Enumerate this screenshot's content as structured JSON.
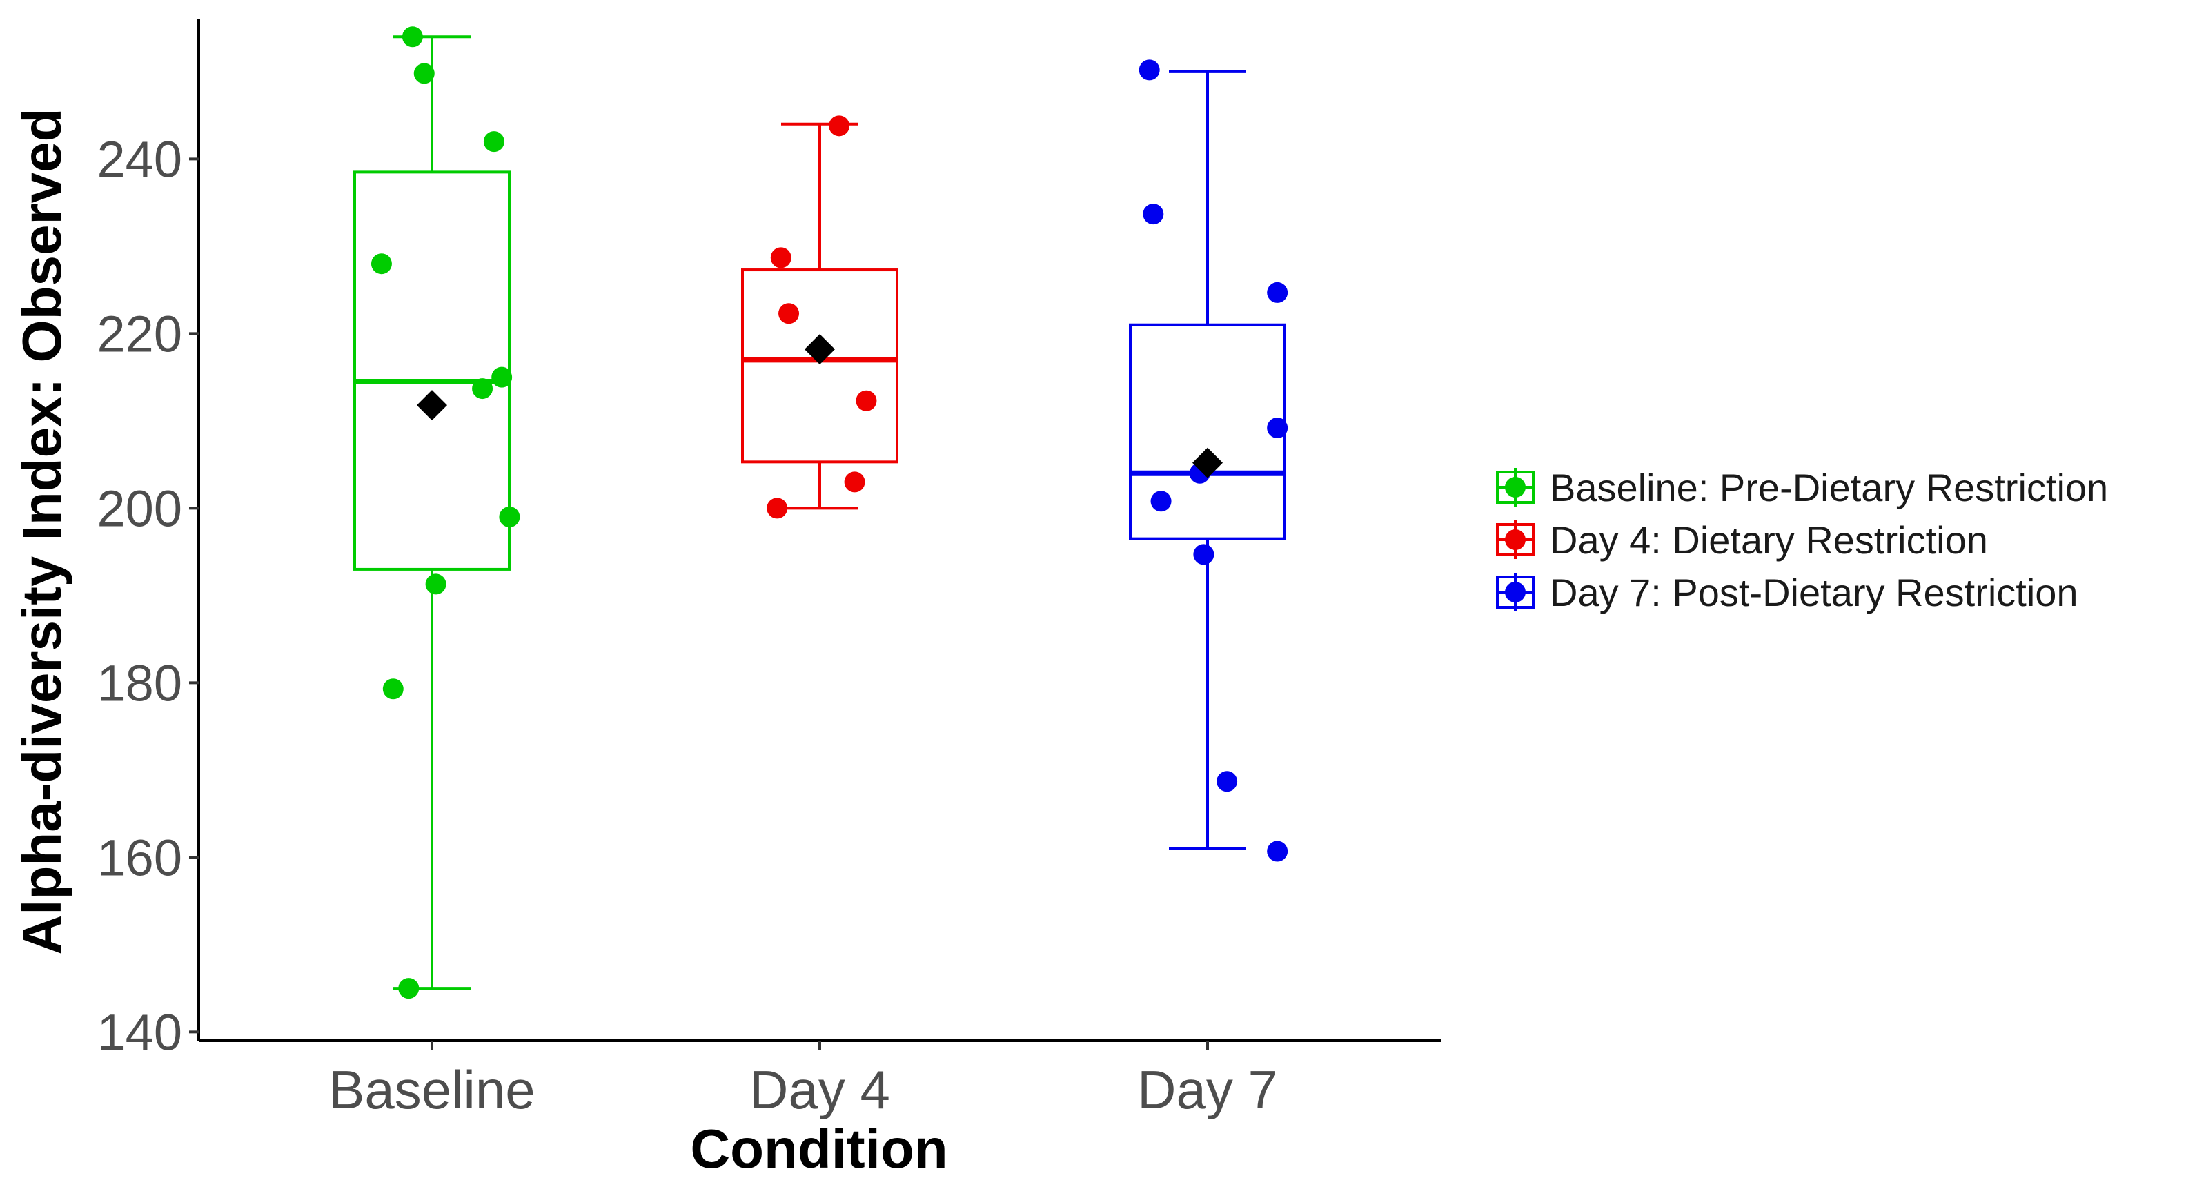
{
  "chart_data": {
    "type": "boxplot",
    "title": "",
    "xlabel": "Condition",
    "ylabel": "Alpha-diversity Index: Observed",
    "ylim": [
      139,
      256
    ],
    "yticks": [
      140,
      160,
      180,
      200,
      220,
      240
    ],
    "categories": [
      "Baseline",
      "Day 4",
      "Day 7"
    ],
    "legend_position": "right",
    "legend": [
      "Baseline: Pre-Dietary Restriction",
      "Day 4: Dietary Restriction",
      "Day 7: Post-Dietary Restriction"
    ],
    "colors": [
      "#00cc00",
      "#ee0000",
      "#0000ee"
    ],
    "mean_marker_color": "#000000",
    "groups": [
      {
        "name": "Baseline",
        "whisker_low": 145,
        "q1": 193,
        "median": 214.5,
        "q3": 238.5,
        "whisker_high": 254,
        "mean": 211.8,
        "points": [
          {
            "x_offset": -0.05,
            "y": 254
          },
          {
            "x_offset": -0.02,
            "y": 249.8
          },
          {
            "x_offset": 0.16,
            "y": 242
          },
          {
            "x_offset": -0.13,
            "y": 228
          },
          {
            "x_offset": 0.18,
            "y": 215
          },
          {
            "x_offset": 0.13,
            "y": 213.7
          },
          {
            "x_offset": 0.2,
            "y": 199
          },
          {
            "x_offset": 0.01,
            "y": 191.3
          },
          {
            "x_offset": -0.1,
            "y": 179.3
          },
          {
            "x_offset": -0.06,
            "y": 145
          }
        ]
      },
      {
        "name": "Day 4",
        "whisker_low": 200,
        "q1": 205.3,
        "median": 217,
        "q3": 227.3,
        "whisker_high": 244,
        "mean": 218.2,
        "points": [
          {
            "x_offset": 0.05,
            "y": 243.8
          },
          {
            "x_offset": -0.1,
            "y": 228.7
          },
          {
            "x_offset": -0.08,
            "y": 222.3
          },
          {
            "x_offset": 0.12,
            "y": 212.3
          },
          {
            "x_offset": 0.09,
            "y": 203
          },
          {
            "x_offset": -0.11,
            "y": 200
          }
        ]
      },
      {
        "name": "Day 7",
        "whisker_low": 161,
        "q1": 196.5,
        "median": 204,
        "q3": 221,
        "whisker_high": 250,
        "mean": 205.2,
        "points": [
          {
            "x_offset": -0.15,
            "y": 250.2
          },
          {
            "x_offset": -0.14,
            "y": 233.7
          },
          {
            "x_offset": 0.18,
            "y": 224.7
          },
          {
            "x_offset": 0.18,
            "y": 209.2
          },
          {
            "x_offset": -0.02,
            "y": 204
          },
          {
            "x_offset": -0.12,
            "y": 200.8
          },
          {
            "x_offset": -0.01,
            "y": 194.7
          },
          {
            "x_offset": 0.05,
            "y": 168.7
          },
          {
            "x_offset": 0.18,
            "y": 160.7
          }
        ]
      }
    ]
  }
}
